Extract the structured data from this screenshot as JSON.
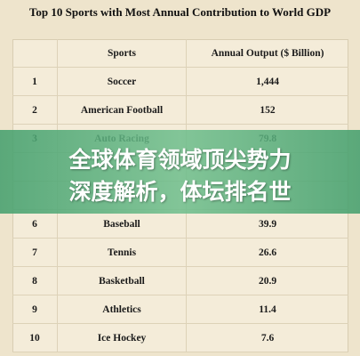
{
  "title": "Top 10 Sports with Most Annual Contribution to World GDP",
  "table": {
    "header": [
      "Sports",
      "Annual Output ($ Billion)"
    ],
    "rows": [
      [
        "1",
        "Soccer",
        "1,444"
      ],
      [
        "2",
        "American Football",
        "152"
      ],
      [
        "3",
        "Auto Racing",
        "79.8"
      ],
      [
        "6",
        "Baseball",
        "39.9"
      ],
      [
        "7",
        "Tennis",
        "26.6"
      ],
      [
        "8",
        "Basketball",
        "20.9"
      ],
      [
        "9",
        "Athletics",
        "11.4"
      ],
      [
        "10",
        "Ice Hockey",
        "7.6"
      ]
    ]
  },
  "banner": [
    "全球体育领域顶尖势力",
    "深度解析，体坛排名世"
  ]
}
